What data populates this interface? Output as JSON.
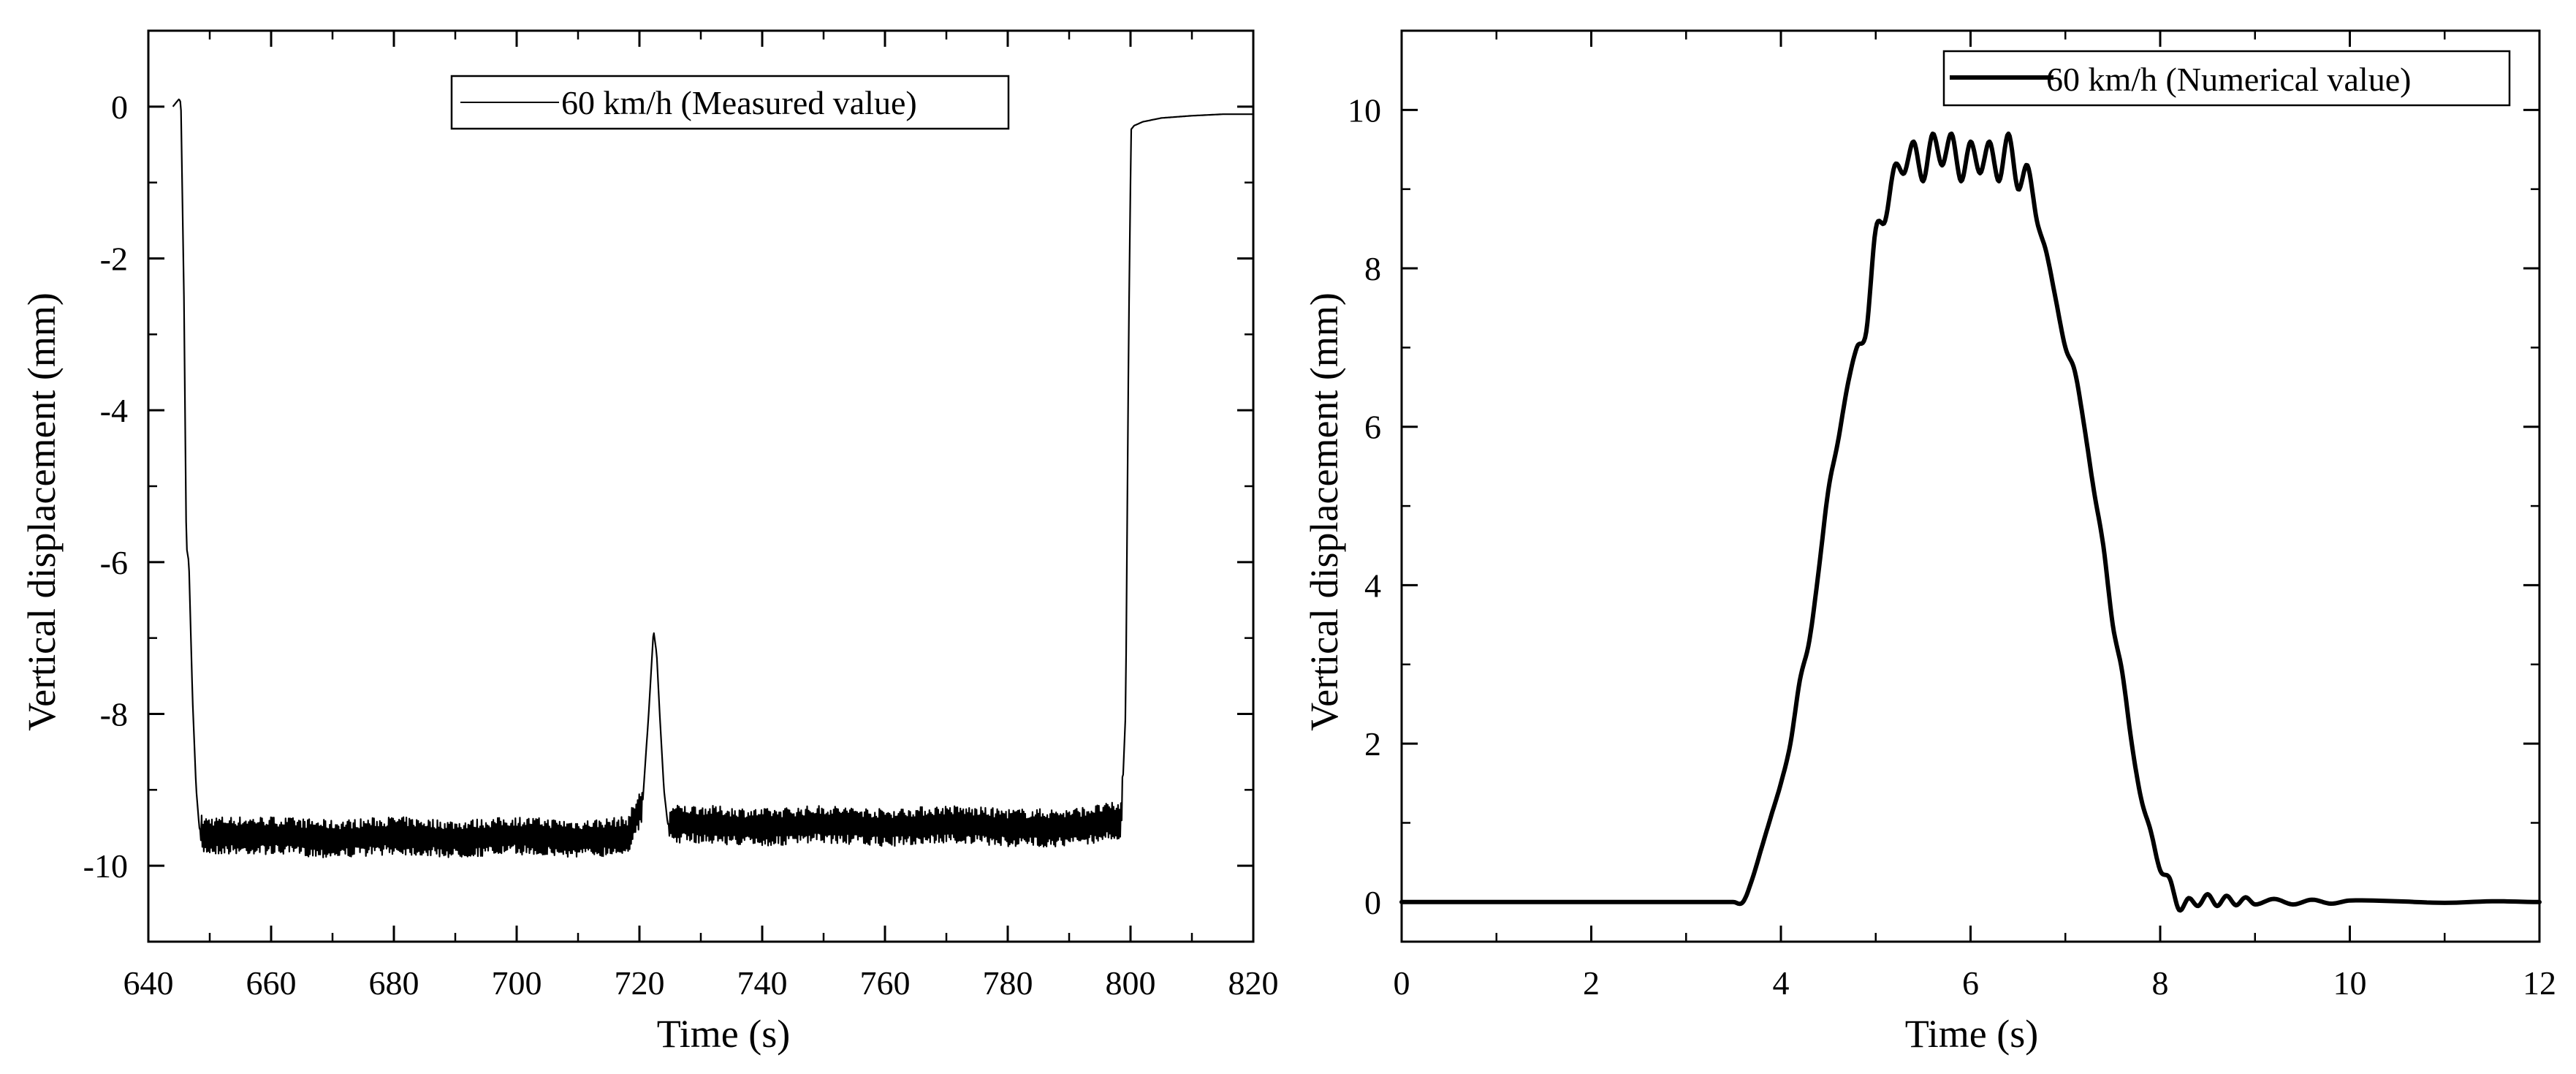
{
  "colors": {
    "line": "#000000",
    "background": "#ffffff",
    "frame": "#000000"
  },
  "chart_data": [
    {
      "type": "line",
      "id": "measured",
      "title": "",
      "xlabel": "Time (s)",
      "ylabel": "Vertical displacement (mm)",
      "xlim": [
        640,
        820
      ],
      "ylim": [
        -11,
        1
      ],
      "xticks": [
        640,
        660,
        680,
        700,
        720,
        740,
        760,
        780,
        800,
        820
      ],
      "xtick_labels": [
        "640",
        "660",
        "680",
        "700",
        "720",
        "740",
        "760",
        "780",
        "800",
        "820"
      ],
      "yticks": [
        0,
        -2,
        -4,
        -6,
        -8,
        -10
      ],
      "ytick_labels": [
        "0",
        "-2",
        "-4",
        "-6",
        "-8",
        "-10"
      ],
      "legend": {
        "label": "60 km/h (Measured value)",
        "position": "top-right"
      },
      "series": [
        {
          "name": "60 km/h (Measured value)",
          "x": [
            644,
            645,
            645.3,
            645.8,
            646.2,
            646.6,
            647.2,
            647.8,
            648.3,
            648.8,
            650,
            660,
            670,
            680,
            690,
            700,
            710,
            718,
            720.5,
            721.5,
            722.3,
            722.8,
            723.3,
            724,
            724.6,
            725.2,
            730,
            740,
            750,
            760,
            770,
            780,
            790,
            798.5,
            799.2,
            799.7,
            800.1,
            800.6,
            802,
            805,
            810,
            815,
            820
          ],
          "y": [
            0.0,
            0.1,
            0.05,
            -2.5,
            -5.8,
            -6.0,
            -7.8,
            -9.0,
            -9.5,
            -9.6,
            -9.6,
            -9.6,
            -9.65,
            -9.6,
            -9.65,
            -9.6,
            -9.65,
            -9.6,
            -9.2,
            -8.0,
            -6.9,
            -7.2,
            -8.0,
            -9.0,
            -9.45,
            -9.45,
            -9.45,
            -9.5,
            -9.45,
            -9.5,
            -9.45,
            -9.5,
            -9.5,
            -9.4,
            -8.0,
            -3.0,
            -0.3,
            -0.25,
            -0.2,
            -0.15,
            -0.12,
            -0.1,
            -0.1
          ],
          "noise_amplitude": 0.25
        }
      ]
    },
    {
      "type": "line",
      "id": "numerical",
      "title": "",
      "xlabel": "Time (s)",
      "ylabel": "Vertical displacement (mm)",
      "xlim": [
        0,
        12
      ],
      "ylim": [
        -0.5,
        11
      ],
      "xticks": [
        0,
        2,
        4,
        6,
        8,
        10,
        12
      ],
      "xtick_labels": [
        "0",
        "2",
        "4",
        "6",
        "8",
        "10",
        "12"
      ],
      "yticks": [
        0,
        2,
        4,
        6,
        8,
        10
      ],
      "ytick_labels": [
        "0",
        "2",
        "4",
        "6",
        "8",
        "10"
      ],
      "legend": {
        "label": "60 km/h (Numerical value)",
        "position": "top-right"
      },
      "series": [
        {
          "name": "60 km/h (Numerical value)",
          "x": [
            0,
            3.5,
            3.6,
            3.7,
            3.8,
            3.9,
            4.0,
            4.1,
            4.2,
            4.3,
            4.4,
            4.5,
            4.6,
            4.7,
            4.8,
            4.9,
            5.0,
            5.1,
            5.2,
            5.3,
            5.4,
            5.5,
            5.6,
            5.7,
            5.8,
            5.9,
            6.0,
            6.1,
            6.2,
            6.3,
            6.4,
            6.5,
            6.6,
            6.7,
            6.8,
            6.9,
            7.0,
            7.1,
            7.2,
            7.3,
            7.4,
            7.5,
            7.6,
            7.7,
            7.8,
            7.9,
            8.0,
            8.1,
            8.2,
            8.3,
            8.4,
            8.5,
            8.6,
            8.7,
            8.8,
            8.9,
            9.0,
            9.2,
            9.4,
            9.6,
            9.8,
            10.0,
            10.5,
            11.0,
            11.5,
            12.0
          ],
          "y": [
            0,
            0,
            0.0,
            0.3,
            0.7,
            1.1,
            1.5,
            2.0,
            2.8,
            3.3,
            4.2,
            5.2,
            5.8,
            6.5,
            7.0,
            7.2,
            8.5,
            8.6,
            9.3,
            9.2,
            9.6,
            9.1,
            9.7,
            9.3,
            9.7,
            9.1,
            9.6,
            9.2,
            9.6,
            9.1,
            9.7,
            9.0,
            9.3,
            8.6,
            8.2,
            7.6,
            7.0,
            6.7,
            6.0,
            5.2,
            4.5,
            3.5,
            2.9,
            2.0,
            1.3,
            0.9,
            0.4,
            0.3,
            -0.1,
            0.05,
            -0.05,
            0.1,
            -0.05,
            0.08,
            -0.04,
            0.06,
            -0.03,
            0.04,
            -0.03,
            0.03,
            -0.02,
            0.02,
            0.01,
            -0.01,
            0.01,
            0.0
          ]
        }
      ]
    }
  ]
}
